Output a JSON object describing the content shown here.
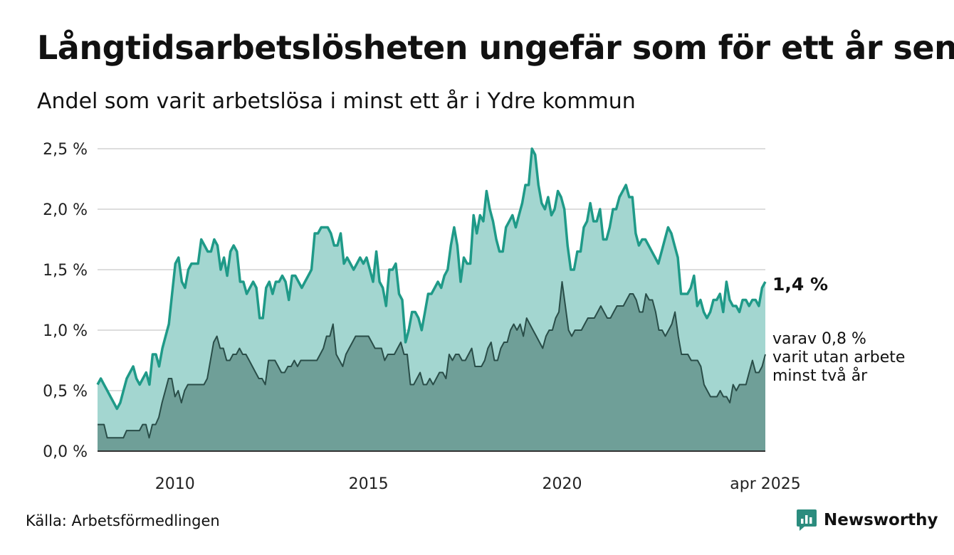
{
  "title": "Långtidsarbetslösheten ungefär som för ett år sen",
  "subtitle": "Andel som varit arbetslösa i minst ett år i Ydre kommun",
  "source": "Källa: Arbetsförmedlingen",
  "brand": {
    "name": "Newsworthy",
    "icon": "newsworthy-logo-icon",
    "color": "#2b8c7e"
  },
  "chart_data": {
    "type": "area",
    "x_start": "2008-01",
    "x_end": "2025-04",
    "x_step": "month",
    "ylim": [
      0,
      2.5
    ],
    "yticks": [
      {
        "value": 0,
        "label": "0,0 %"
      },
      {
        "value": 0.5,
        "label": "0,5 %"
      },
      {
        "value": 1,
        "label": "1,0 %"
      },
      {
        "value": 1.5,
        "label": "1,5 %"
      },
      {
        "value": 2,
        "label": "2,0 %"
      },
      {
        "value": 2.5,
        "label": "2,5 %"
      }
    ],
    "xticks": [
      {
        "value": "2010-01",
        "label": "2010"
      },
      {
        "value": "2015-01",
        "label": "2015"
      },
      {
        "value": "2020-01",
        "label": "2020"
      },
      {
        "value": "2025-04",
        "label": "apr 2025"
      }
    ],
    "grid": true,
    "colors": {
      "total_fill": "#a3d6d0",
      "total_line": "#1f9a88",
      "sub_fill": "#6f9f98",
      "sub_line": "#294d48",
      "grid": "#dddddd",
      "axis": "#333333"
    },
    "series": [
      {
        "id": "total",
        "end_label": "1,4 %",
        "values": [
          0.55,
          0.6,
          0.55,
          0.5,
          0.45,
          0.4,
          0.35,
          0.4,
          0.5,
          0.6,
          0.65,
          0.7,
          0.6,
          0.55,
          0.6,
          0.65,
          0.55,
          0.8,
          0.8,
          0.7,
          0.85,
          0.95,
          1.05,
          1.3,
          1.55,
          1.6,
          1.4,
          1.35,
          1.5,
          1.55,
          1.55,
          1.55,
          1.75,
          1.7,
          1.65,
          1.65,
          1.75,
          1.7,
          1.5,
          1.6,
          1.45,
          1.65,
          1.7,
          1.65,
          1.4,
          1.4,
          1.3,
          1.35,
          1.4,
          1.35,
          1.1,
          1.1,
          1.35,
          1.4,
          1.3,
          1.4,
          1.4,
          1.45,
          1.4,
          1.25,
          1.45,
          1.45,
          1.4,
          1.35,
          1.4,
          1.45,
          1.5,
          1.8,
          1.8,
          1.85,
          1.85,
          1.85,
          1.8,
          1.7,
          1.7,
          1.8,
          1.55,
          1.6,
          1.55,
          1.5,
          1.55,
          1.6,
          1.55,
          1.6,
          1.5,
          1.4,
          1.65,
          1.4,
          1.35,
          1.2,
          1.5,
          1.5,
          1.55,
          1.3,
          1.25,
          0.9,
          1.0,
          1.15,
          1.15,
          1.1,
          1.0,
          1.15,
          1.3,
          1.3,
          1.35,
          1.4,
          1.35,
          1.45,
          1.5,
          1.7,
          1.85,
          1.7,
          1.4,
          1.6,
          1.55,
          1.55,
          1.95,
          1.8,
          1.95,
          1.9,
          2.15,
          2.0,
          1.9,
          1.75,
          1.65,
          1.65,
          1.85,
          1.9,
          1.95,
          1.85,
          1.95,
          2.05,
          2.2,
          2.2,
          2.5,
          2.45,
          2.2,
          2.05,
          2.0,
          2.1,
          1.95,
          2.0,
          2.15,
          2.1,
          2.0,
          1.7,
          1.5,
          1.5,
          1.65,
          1.65,
          1.85,
          1.9,
          2.05,
          1.9,
          1.9,
          2.0,
          1.75,
          1.75,
          1.85,
          2.0,
          2.0,
          2.1,
          2.15,
          2.2,
          2.1,
          2.1,
          1.8,
          1.7,
          1.75,
          1.75,
          1.7,
          1.65,
          1.6,
          1.55,
          1.65,
          1.75,
          1.85,
          1.8,
          1.7,
          1.6,
          1.3,
          1.3,
          1.3,
          1.35,
          1.45,
          1.2,
          1.25,
          1.15,
          1.1,
          1.15,
          1.25,
          1.25,
          1.3,
          1.15,
          1.4,
          1.25,
          1.2,
          1.2,
          1.15,
          1.25,
          1.25,
          1.2,
          1.25,
          1.25,
          1.2,
          1.35,
          1.4
        ]
      },
      {
        "id": "sub",
        "end_label_lines": [
          "varav 0,8 %",
          "varit utan arbete",
          "minst två år"
        ],
        "values": [
          0.22,
          0.22,
          0.22,
          0.11,
          0.11,
          0.11,
          0.11,
          0.11,
          0.11,
          0.17,
          0.17,
          0.17,
          0.17,
          0.17,
          0.22,
          0.22,
          0.11,
          0.22,
          0.22,
          0.28,
          0.4,
          0.5,
          0.6,
          0.6,
          0.45,
          0.5,
          0.4,
          0.5,
          0.55,
          0.55,
          0.55,
          0.55,
          0.55,
          0.55,
          0.6,
          0.75,
          0.9,
          0.95,
          0.85,
          0.85,
          0.75,
          0.75,
          0.8,
          0.8,
          0.85,
          0.8,
          0.8,
          0.75,
          0.7,
          0.65,
          0.6,
          0.6,
          0.55,
          0.75,
          0.75,
          0.75,
          0.7,
          0.65,
          0.65,
          0.7,
          0.7,
          0.75,
          0.7,
          0.75,
          0.75,
          0.75,
          0.75,
          0.75,
          0.75,
          0.8,
          0.85,
          0.95,
          0.95,
          1.05,
          0.8,
          0.75,
          0.7,
          0.8,
          0.85,
          0.9,
          0.95,
          0.95,
          0.95,
          0.95,
          0.95,
          0.9,
          0.85,
          0.85,
          0.85,
          0.75,
          0.8,
          0.8,
          0.8,
          0.85,
          0.9,
          0.8,
          0.8,
          0.55,
          0.55,
          0.6,
          0.65,
          0.55,
          0.55,
          0.6,
          0.55,
          0.6,
          0.65,
          0.65,
          0.6,
          0.8,
          0.75,
          0.8,
          0.8,
          0.75,
          0.75,
          0.8,
          0.85,
          0.7,
          0.7,
          0.7,
          0.75,
          0.85,
          0.9,
          0.75,
          0.75,
          0.85,
          0.9,
          0.9,
          1.0,
          1.05,
          1.0,
          1.05,
          0.95,
          1.1,
          1.05,
          1.0,
          0.95,
          0.9,
          0.85,
          0.95,
          1.0,
          1.0,
          1.1,
          1.15,
          1.4,
          1.2,
          1.0,
          0.95,
          1.0,
          1.0,
          1.0,
          1.05,
          1.1,
          1.1,
          1.1,
          1.15,
          1.2,
          1.15,
          1.1,
          1.1,
          1.15,
          1.2,
          1.2,
          1.2,
          1.25,
          1.3,
          1.3,
          1.25,
          1.15,
          1.15,
          1.3,
          1.25,
          1.25,
          1.15,
          1.0,
          1.0,
          0.95,
          1.0,
          1.05,
          1.15,
          0.95,
          0.8,
          0.8,
          0.8,
          0.75,
          0.75,
          0.75,
          0.7,
          0.55,
          0.5,
          0.45,
          0.45,
          0.45,
          0.5,
          0.45,
          0.45,
          0.4,
          0.55,
          0.5,
          0.55,
          0.55,
          0.55,
          0.65,
          0.75,
          0.65,
          0.65,
          0.7,
          0.8
        ]
      }
    ]
  }
}
